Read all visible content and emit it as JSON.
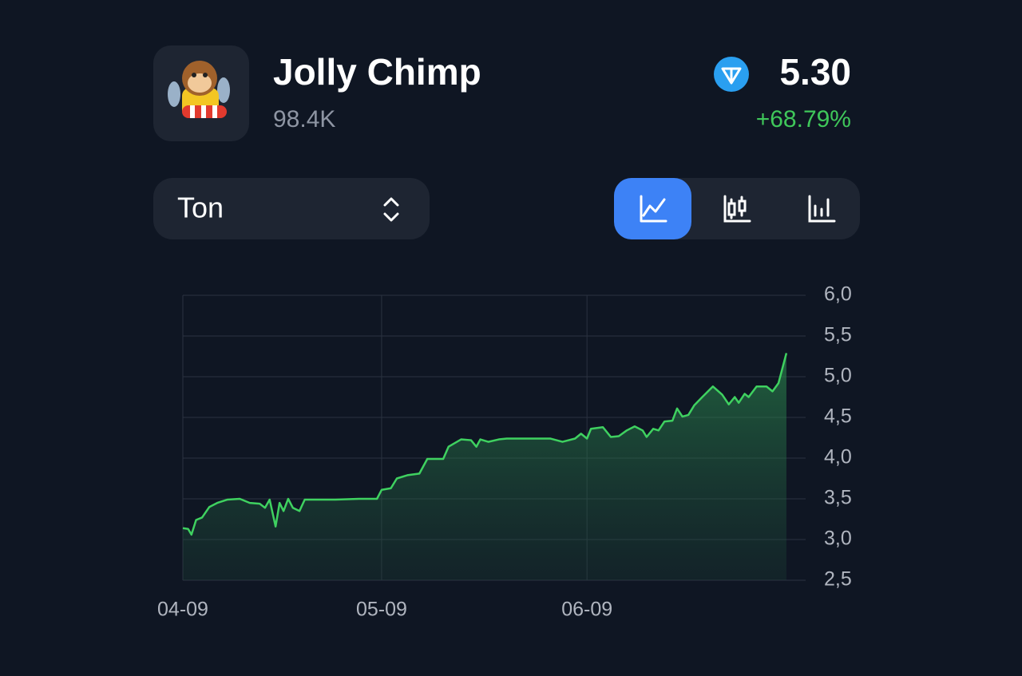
{
  "header": {
    "title": "Jolly Chimp",
    "volume": "98.4K",
    "price": "5.30",
    "change": "+68.79%"
  },
  "selector": {
    "label": "Ton"
  },
  "chart_data": {
    "type": "area",
    "color": "#3fd160",
    "x": [
      0,
      0.8,
      1.3,
      2.0,
      2.9,
      4.0,
      5.2,
      6.7,
      8.6,
      10.1,
      11.6,
      12.4,
      13.1,
      14.0,
      14.6,
      15.2,
      15.9,
      16.6,
      17.6,
      18.4,
      23.0,
      26.6,
      29.3,
      30.0,
      31.4,
      32.3,
      33.9,
      35.7,
      36.9,
      39.3,
      40.1,
      42.0,
      43.5,
      44.3,
      44.9,
      46.1,
      47.7,
      48.9,
      55.5,
      57.3,
      59.2,
      60.1,
      61.0,
      61.6,
      63.4,
      64.6,
      65.8,
      67.0,
      68.2,
      69.4,
      70.0,
      71.0,
      71.8,
      72.7,
      73.9,
      74.6,
      75.4,
      76.3,
      77.2,
      78.4,
      80.0,
      81.4,
      82.4,
      83.3,
      83.9,
      84.8,
      85.4,
      86.6,
      88.1,
      89.0,
      89.9,
      91.1
    ],
    "values": [
      3.14,
      3.13,
      3.06,
      3.24,
      3.27,
      3.4,
      3.45,
      3.49,
      3.5,
      3.45,
      3.44,
      3.39,
      3.49,
      3.16,
      3.45,
      3.35,
      3.5,
      3.39,
      3.35,
      3.49,
      3.49,
      3.5,
      3.5,
      3.61,
      3.63,
      3.75,
      3.79,
      3.81,
      3.99,
      3.99,
      4.14,
      4.23,
      4.22,
      4.14,
      4.23,
      4.2,
      4.23,
      4.24,
      4.24,
      4.2,
      4.24,
      4.3,
      4.24,
      4.36,
      4.38,
      4.26,
      4.27,
      4.34,
      4.39,
      4.34,
      4.26,
      4.36,
      4.34,
      4.45,
      4.46,
      4.61,
      4.51,
      4.53,
      4.65,
      4.75,
      4.88,
      4.78,
      4.66,
      4.75,
      4.68,
      4.79,
      4.75,
      4.88,
      4.88,
      4.82,
      4.92,
      5.29
    ],
    "xlim": [
      0,
      94
    ],
    "xticks": [
      {
        "value": 0,
        "label": "04-09"
      },
      {
        "value": 30,
        "label": "05-09"
      },
      {
        "value": 61,
        "label": "06-09"
      }
    ],
    "ylim": [
      2.5,
      6
    ],
    "yticks": [
      {
        "value": 2.5,
        "label": "2,5"
      },
      {
        "value": 3,
        "label": "3,0"
      },
      {
        "value": 3.5,
        "label": "3,5"
      },
      {
        "value": 4,
        "label": "4,0"
      },
      {
        "value": 4.5,
        "label": "4,5"
      },
      {
        "value": 5,
        "label": "5,0"
      },
      {
        "value": 5.5,
        "label": "5,5"
      },
      {
        "value": 6,
        "label": "6,0"
      }
    ],
    "grid": true
  }
}
